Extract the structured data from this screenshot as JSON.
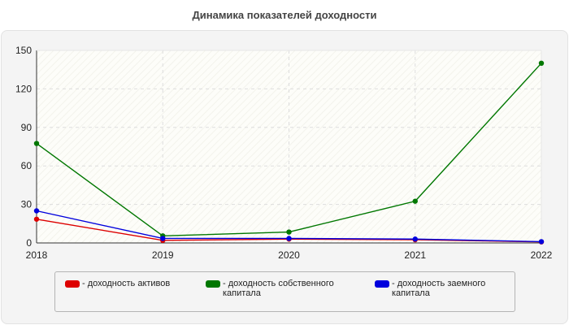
{
  "title": "Динамика показателей доходности",
  "chart_data": {
    "type": "line",
    "x": [
      "2018",
      "2019",
      "2020",
      "2021",
      "2022"
    ],
    "ylim": [
      0,
      150
    ],
    "yticks": [
      0,
      30,
      60,
      90,
      120,
      150
    ],
    "grid": true,
    "legend_position": "bottom",
    "series": [
      {
        "name": "- доходность активов",
        "color": "#dd0000",
        "values": [
          18.5,
          2.0,
          3.0,
          2.5,
          0.8
        ]
      },
      {
        "name": "- доходность собственного капитала",
        "color": "#007700",
        "values": [
          77.5,
          5.5,
          8.5,
          32.5,
          140.0
        ]
      },
      {
        "name": "- доходность заемного капитала",
        "color": "#0000dd",
        "values": [
          25.0,
          3.5,
          3.5,
          3.0,
          1.0
        ]
      }
    ]
  }
}
